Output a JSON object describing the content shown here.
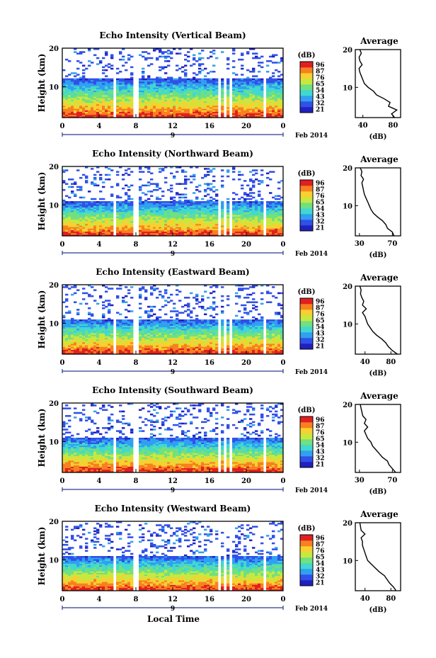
{
  "figure": {
    "bottom_xlabel": "Local Time"
  },
  "chart_data": [
    {
      "type": "heatmap",
      "title": "Echo Intensity (Vertical Beam)",
      "ylabel": "Height (km)",
      "xlabel": "",
      "x_ticks": [
        "0",
        "4",
        "8",
        "12",
        "16",
        "20",
        "0"
      ],
      "y_ticks": [
        "10",
        "20"
      ],
      "xlim": [
        0,
        24
      ],
      "ylim": [
        2,
        20
      ],
      "date_day": "9",
      "date_month_year": "Feb 2014",
      "colorbar_label": "(dB)",
      "colorbar_ticks": [
        "96",
        "87",
        "76",
        "65",
        "54",
        "43",
        "32",
        "21"
      ],
      "data_gaps_hours": [
        [
          5.6,
          5.9
        ],
        [
          7.8,
          8.4
        ],
        [
          17.0,
          17.2
        ],
        [
          17.6,
          17.8
        ],
        [
          18.2,
          18.4
        ],
        [
          21.7,
          22.1
        ]
      ],
      "profile": {
        "title": "Average",
        "xlabel": "(dB)",
        "x_ticks": [
          "40",
          "80"
        ],
        "y_ticks": [
          "10",
          "20"
        ],
        "xlim": [
          30,
          90
        ],
        "ylim": [
          2,
          20
        ],
        "heights_km": [
          2,
          3,
          4,
          5,
          6,
          7,
          8,
          9,
          10,
          11,
          12,
          13,
          14,
          15,
          16,
          17,
          18,
          19,
          20
        ],
        "values_db": [
          82,
          78,
          85,
          74,
          76,
          68,
          58,
          54,
          47,
          42,
          40,
          38,
          36,
          35,
          39,
          36,
          35,
          38,
          36
        ]
      }
    },
    {
      "type": "heatmap",
      "title": "Echo Intensity (Northward Beam)",
      "ylabel": "Height (km)",
      "xlabel": "",
      "x_ticks": [
        "0",
        "4",
        "8",
        "12",
        "16",
        "20",
        "0"
      ],
      "y_ticks": [
        "10",
        "20"
      ],
      "xlim": [
        0,
        24
      ],
      "ylim": [
        2,
        20
      ],
      "date_day": "9",
      "date_month_year": "Feb 2014",
      "colorbar_label": "(dB)",
      "colorbar_ticks": [
        "96",
        "87",
        "76",
        "65",
        "54",
        "43",
        "32",
        "21"
      ],
      "data_gaps_hours": [
        [
          5.6,
          5.9
        ],
        [
          7.8,
          8.4
        ],
        [
          17.0,
          17.2
        ],
        [
          17.6,
          17.8
        ],
        [
          18.2,
          18.4
        ],
        [
          21.7,
          22.1
        ]
      ],
      "profile": {
        "title": "Average",
        "xlabel": "(dB)",
        "x_ticks": [
          "30",
          "70"
        ],
        "y_ticks": [
          "10",
          "20"
        ],
        "xlim": [
          25,
          80
        ],
        "ylim": [
          2,
          20
        ],
        "heights_km": [
          2,
          3,
          4,
          5,
          6,
          7,
          8,
          9,
          10,
          11,
          12,
          13,
          14,
          15,
          16,
          17,
          18,
          19,
          20
        ],
        "values_db": [
          72,
          70,
          64,
          62,
          58,
          52,
          47,
          44,
          42,
          40,
          38,
          36,
          35,
          34,
          33,
          35,
          32,
          33,
          31
        ]
      }
    },
    {
      "type": "heatmap",
      "title": "Echo Intensity (Eastward Beam)",
      "ylabel": "Height (km)",
      "xlabel": "",
      "x_ticks": [
        "0",
        "4",
        "8",
        "12",
        "16",
        "20",
        "0"
      ],
      "y_ticks": [
        "10",
        "20"
      ],
      "xlim": [
        0,
        24
      ],
      "ylim": [
        2,
        20
      ],
      "date_day": "9",
      "date_month_year": "Feb 2014",
      "colorbar_label": "(dB)",
      "colorbar_ticks": [
        "96",
        "87",
        "76",
        "65",
        "54",
        "43",
        "32",
        "21"
      ],
      "data_gaps_hours": [
        [
          5.6,
          5.9
        ],
        [
          7.8,
          8.4
        ],
        [
          17.0,
          17.2
        ],
        [
          17.6,
          17.8
        ],
        [
          18.2,
          18.4
        ],
        [
          21.7,
          22.1
        ]
      ],
      "profile": {
        "title": "Average",
        "xlabel": "(dB)",
        "x_ticks": [
          "40",
          "80"
        ],
        "y_ticks": [
          "10",
          "20"
        ],
        "xlim": [
          25,
          95
        ],
        "ylim": [
          2,
          20
        ],
        "heights_km": [
          2,
          3,
          4,
          5,
          6,
          7,
          8,
          9,
          10,
          11,
          12,
          13,
          14,
          15,
          16,
          17,
          18,
          19,
          20
        ],
        "values_db": [
          90,
          82,
          76,
          72,
          66,
          58,
          52,
          48,
          44,
          42,
          40,
          36,
          42,
          36,
          38,
          35,
          33,
          34,
          32
        ]
      }
    },
    {
      "type": "heatmap",
      "title": "Echo Intensity (Southward Beam)",
      "ylabel": "Height (km)",
      "xlabel": "",
      "x_ticks": [
        "0",
        "4",
        "8",
        "12",
        "16",
        "20",
        "0"
      ],
      "y_ticks": [
        "10",
        "20"
      ],
      "xlim": [
        0,
        24
      ],
      "ylim": [
        2,
        20
      ],
      "date_day": "9",
      "date_month_year": "Feb 2014",
      "colorbar_label": "(dB)",
      "colorbar_ticks": [
        "96",
        "87",
        "76",
        "65",
        "54",
        "43",
        "32",
        "21"
      ],
      "data_gaps_hours": [
        [
          5.6,
          5.9
        ],
        [
          7.8,
          8.4
        ],
        [
          17.0,
          17.2
        ],
        [
          17.6,
          17.8
        ],
        [
          18.2,
          18.4
        ],
        [
          21.7,
          22.1
        ]
      ],
      "profile": {
        "title": "Average",
        "xlabel": "(dB)",
        "x_ticks": [
          "30",
          "70"
        ],
        "y_ticks": [
          "10",
          "20"
        ],
        "xlim": [
          25,
          80
        ],
        "ylim": [
          2,
          20
        ],
        "heights_km": [
          2,
          3,
          4,
          5,
          6,
          7,
          8,
          9,
          10,
          11,
          12,
          13,
          14,
          15,
          16,
          17,
          18,
          19,
          20
        ],
        "values_db": [
          74,
          70,
          66,
          64,
          58,
          54,
          50,
          46,
          44,
          40,
          38,
          36,
          40,
          36,
          38,
          34,
          33,
          32,
          31
        ]
      }
    },
    {
      "type": "heatmap",
      "title": "Echo Intensity (Westward Beam)",
      "ylabel": "Height (km)",
      "xlabel": "",
      "x_ticks": [
        "0",
        "4",
        "8",
        "12",
        "16",
        "20",
        "0"
      ],
      "y_ticks": [
        "10",
        "20"
      ],
      "xlim": [
        0,
        24
      ],
      "ylim": [
        2,
        20
      ],
      "date_day": "9",
      "date_month_year": "Feb 2014",
      "colorbar_label": "(dB)",
      "colorbar_ticks": [
        "96",
        "87",
        "76",
        "65",
        "54",
        "43",
        "32",
        "21"
      ],
      "data_gaps_hours": [
        [
          5.6,
          5.9
        ],
        [
          7.8,
          8.4
        ],
        [
          17.0,
          17.2
        ],
        [
          17.6,
          17.8
        ],
        [
          18.2,
          18.4
        ],
        [
          21.7,
          22.1
        ]
      ],
      "profile": {
        "title": "Average",
        "xlabel": "(dB)",
        "x_ticks": [
          "40",
          "80"
        ],
        "y_ticks": [
          "10",
          "20"
        ],
        "xlim": [
          25,
          95
        ],
        "ylim": [
          2,
          20
        ],
        "heights_km": [
          2,
          3,
          4,
          5,
          6,
          7,
          8,
          9,
          10,
          11,
          12,
          13,
          14,
          15,
          16,
          17,
          18,
          19,
          20
        ],
        "values_db": [
          88,
          84,
          78,
          74,
          70,
          62,
          56,
          50,
          44,
          42,
          40,
          38,
          36,
          36,
          34,
          40,
          34,
          33,
          32
        ]
      }
    }
  ],
  "colors": {
    "colormap": [
      "#2020c0",
      "#3050e8",
      "#30a0f0",
      "#40d8d0",
      "#70e080",
      "#c8e840",
      "#f8d030",
      "#f88020",
      "#e02020"
    ]
  }
}
